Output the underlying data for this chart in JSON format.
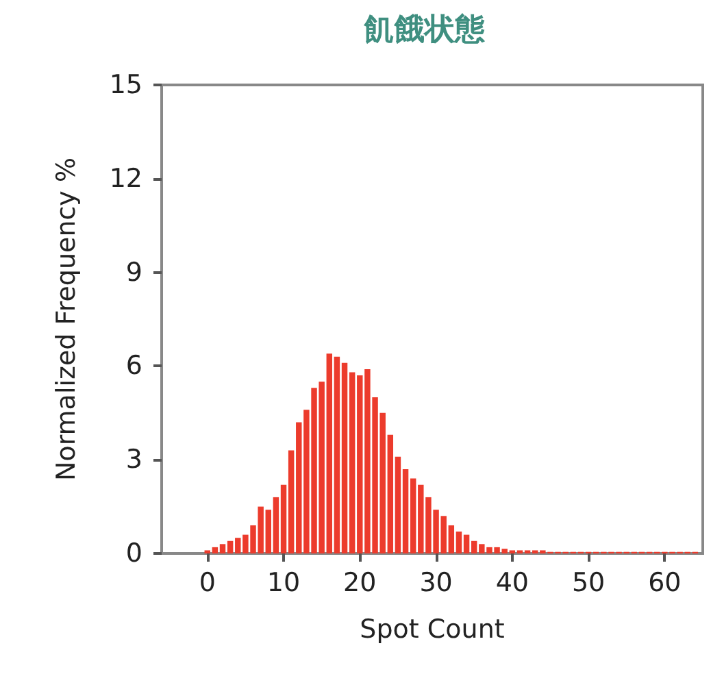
{
  "chart_data": {
    "type": "histogram",
    "title": "飢餓状態",
    "xlabel": "Spot Count",
    "ylabel": "Normalized Frequency %",
    "color": "#ec3b2c",
    "bins": [
      -0.5,
      0.5,
      1.5,
      2.5,
      3.5,
      4.5,
      5.5,
      6.5,
      7.5,
      8.5,
      9.5,
      10.5,
      11.5,
      12.5,
      13.5,
      14.5,
      15.5,
      16.5,
      17.5,
      18.5,
      19.5,
      20.5,
      21.5,
      22.5,
      23.5,
      24.5,
      25.5,
      26.5,
      27.5,
      28.5,
      29.5,
      30.5,
      31.5,
      32.5,
      33.5,
      34.5,
      35.5,
      36.5,
      37.5,
      38.5,
      39.5,
      40.5,
      41.5,
      42.5,
      43.5,
      44.5,
      45.5,
      46.5,
      47.5,
      48.5,
      49.5,
      50.5,
      51.5,
      52.5,
      53.5,
      54.5,
      55.5,
      56.5,
      57.5,
      58.5,
      59.5,
      60.5,
      61.5,
      62.5,
      63.5,
      64.5
    ],
    "values": [
      0.1,
      0.2,
      0.3,
      0.4,
      0.5,
      0.6,
      0.9,
      1.5,
      1.4,
      1.8,
      2.2,
      3.3,
      4.2,
      4.6,
      5.3,
      5.5,
      6.4,
      6.3,
      6.1,
      5.8,
      5.7,
      5.9,
      5.0,
      4.5,
      3.8,
      3.1,
      2.7,
      2.4,
      2.2,
      1.8,
      1.4,
      1.2,
      0.9,
      0.7,
      0.6,
      0.4,
      0.3,
      0.2,
      0.2,
      0.15,
      0.1,
      0.1,
      0.1,
      0.1,
      0.1,
      0.05,
      0.05,
      0.05,
      0.05,
      0.05,
      0.05,
      0.05,
      0.05,
      0.05,
      0.05,
      0.05,
      0.05,
      0.05,
      0.05,
      0.05,
      0.05,
      0.05,
      0.05,
      0.05,
      0.05
    ],
    "xlim": [
      -6,
      65
    ],
    "xticks": [
      0,
      10,
      20,
      30,
      40,
      50,
      60
    ],
    "ylim": [
      0,
      15
    ],
    "yticks": [
      0,
      3,
      6,
      9,
      12,
      15
    ],
    "grid": false
  }
}
